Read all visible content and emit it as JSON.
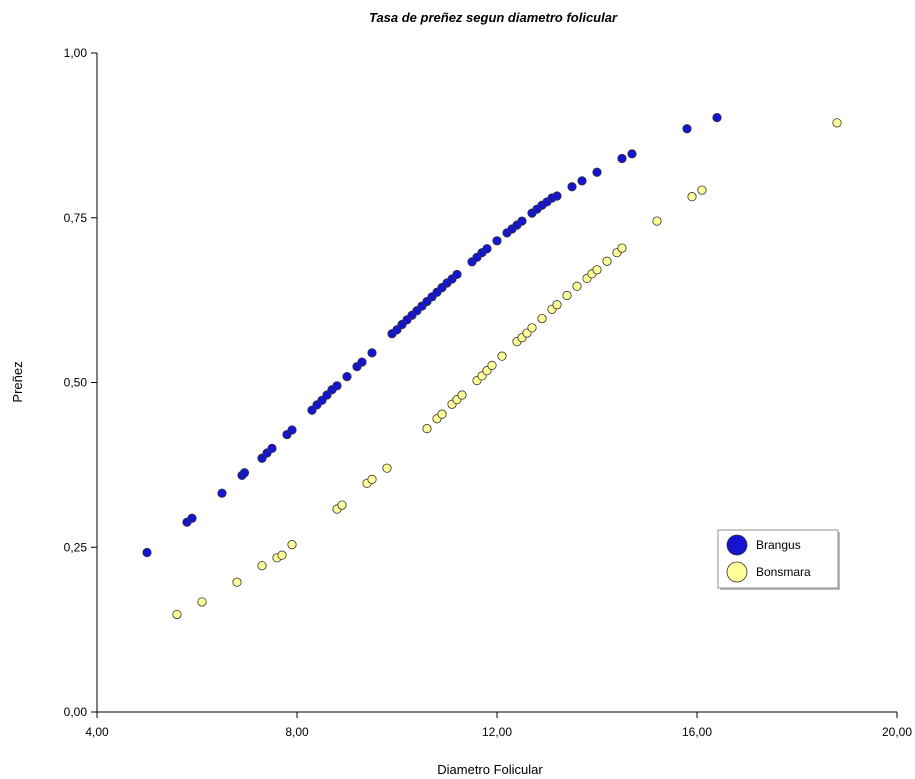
{
  "chart_data": {
    "type": "scatter",
    "title": "Tasa de preñez segun diametro folicular",
    "xlabel": "Diametro Folicular",
    "ylabel": "Preñez",
    "xlim": [
      4,
      20
    ],
    "ylim": [
      0,
      1
    ],
    "x_ticks": [
      {
        "value": 4,
        "label": "4,00"
      },
      {
        "value": 8,
        "label": "8,00"
      },
      {
        "value": 12,
        "label": "12,00"
      },
      {
        "value": 16,
        "label": "16,00"
      },
      {
        "value": 20,
        "label": "20,00"
      }
    ],
    "y_ticks": [
      {
        "value": 0,
        "label": "0,00"
      },
      {
        "value": 0.25,
        "label": "0,25"
      },
      {
        "value": 0.5,
        "label": "0,50"
      },
      {
        "value": 0.75,
        "label": "0,75"
      },
      {
        "value": 1,
        "label": "1,00"
      }
    ],
    "grid": false,
    "legend_position": "lower-right",
    "series": [
      {
        "name": "Brangus",
        "color": "#1414d2",
        "points": [
          [
            5.0,
            0.242
          ],
          [
            5.8,
            0.288
          ],
          [
            5.9,
            0.294
          ],
          [
            6.5,
            0.332
          ],
          [
            6.9,
            0.359
          ],
          [
            6.95,
            0.363
          ],
          [
            7.3,
            0.385
          ],
          [
            7.4,
            0.393
          ],
          [
            7.5,
            0.4
          ],
          [
            7.8,
            0.421
          ],
          [
            7.9,
            0.428
          ],
          [
            8.3,
            0.458
          ],
          [
            8.4,
            0.466
          ],
          [
            8.5,
            0.473
          ],
          [
            8.6,
            0.481
          ],
          [
            8.7,
            0.489
          ],
          [
            8.8,
            0.495
          ],
          [
            9.0,
            0.509
          ],
          [
            9.2,
            0.524
          ],
          [
            9.3,
            0.531
          ],
          [
            9.5,
            0.545
          ],
          [
            9.9,
            0.574
          ],
          [
            10.0,
            0.58
          ],
          [
            10.1,
            0.588
          ],
          [
            10.2,
            0.595
          ],
          [
            10.3,
            0.602
          ],
          [
            10.4,
            0.609
          ],
          [
            10.5,
            0.616
          ],
          [
            10.6,
            0.623
          ],
          [
            10.7,
            0.63
          ],
          [
            10.8,
            0.637
          ],
          [
            10.9,
            0.644
          ],
          [
            11.0,
            0.651
          ],
          [
            11.1,
            0.657
          ],
          [
            11.2,
            0.664
          ],
          [
            11.5,
            0.683
          ],
          [
            11.6,
            0.69
          ],
          [
            11.7,
            0.697
          ],
          [
            11.8,
            0.703
          ],
          [
            12.0,
            0.715
          ],
          [
            12.2,
            0.727
          ],
          [
            12.3,
            0.733
          ],
          [
            12.4,
            0.739
          ],
          [
            12.5,
            0.745
          ],
          [
            12.7,
            0.757
          ],
          [
            12.8,
            0.763
          ],
          [
            12.9,
            0.769
          ],
          [
            13.0,
            0.774
          ],
          [
            13.1,
            0.78
          ],
          [
            13.2,
            0.783
          ],
          [
            13.5,
            0.797
          ],
          [
            13.7,
            0.806
          ],
          [
            14.0,
            0.819
          ],
          [
            14.5,
            0.84
          ],
          [
            14.7,
            0.847
          ],
          [
            15.8,
            0.885
          ],
          [
            16.4,
            0.902
          ]
        ]
      },
      {
        "name": "Bonsmara",
        "color": "#ffff99",
        "points": [
          [
            5.6,
            0.148
          ],
          [
            6.1,
            0.167
          ],
          [
            6.8,
            0.197
          ],
          [
            7.3,
            0.222
          ],
          [
            7.6,
            0.234
          ],
          [
            7.7,
            0.238
          ],
          [
            7.9,
            0.254
          ],
          [
            8.8,
            0.308
          ],
          [
            8.9,
            0.314
          ],
          [
            9.4,
            0.347
          ],
          [
            9.5,
            0.353
          ],
          [
            9.8,
            0.37
          ],
          [
            10.6,
            0.43
          ],
          [
            10.8,
            0.445
          ],
          [
            10.9,
            0.452
          ],
          [
            11.1,
            0.467
          ],
          [
            11.2,
            0.474
          ],
          [
            11.3,
            0.481
          ],
          [
            11.6,
            0.503
          ],
          [
            11.7,
            0.51
          ],
          [
            11.8,
            0.518
          ],
          [
            11.9,
            0.526
          ],
          [
            12.1,
            0.54
          ],
          [
            12.4,
            0.562
          ],
          [
            12.5,
            0.568
          ],
          [
            12.6,
            0.575
          ],
          [
            12.7,
            0.583
          ],
          [
            12.9,
            0.597
          ],
          [
            13.1,
            0.611
          ],
          [
            13.2,
            0.618
          ],
          [
            13.4,
            0.632
          ],
          [
            13.6,
            0.646
          ],
          [
            13.8,
            0.658
          ],
          [
            13.9,
            0.665
          ],
          [
            14.0,
            0.671
          ],
          [
            14.2,
            0.684
          ],
          [
            14.4,
            0.697
          ],
          [
            14.5,
            0.704
          ],
          [
            15.2,
            0.745
          ],
          [
            15.9,
            0.782
          ],
          [
            16.1,
            0.792
          ],
          [
            18.8,
            0.894
          ]
        ]
      }
    ]
  }
}
